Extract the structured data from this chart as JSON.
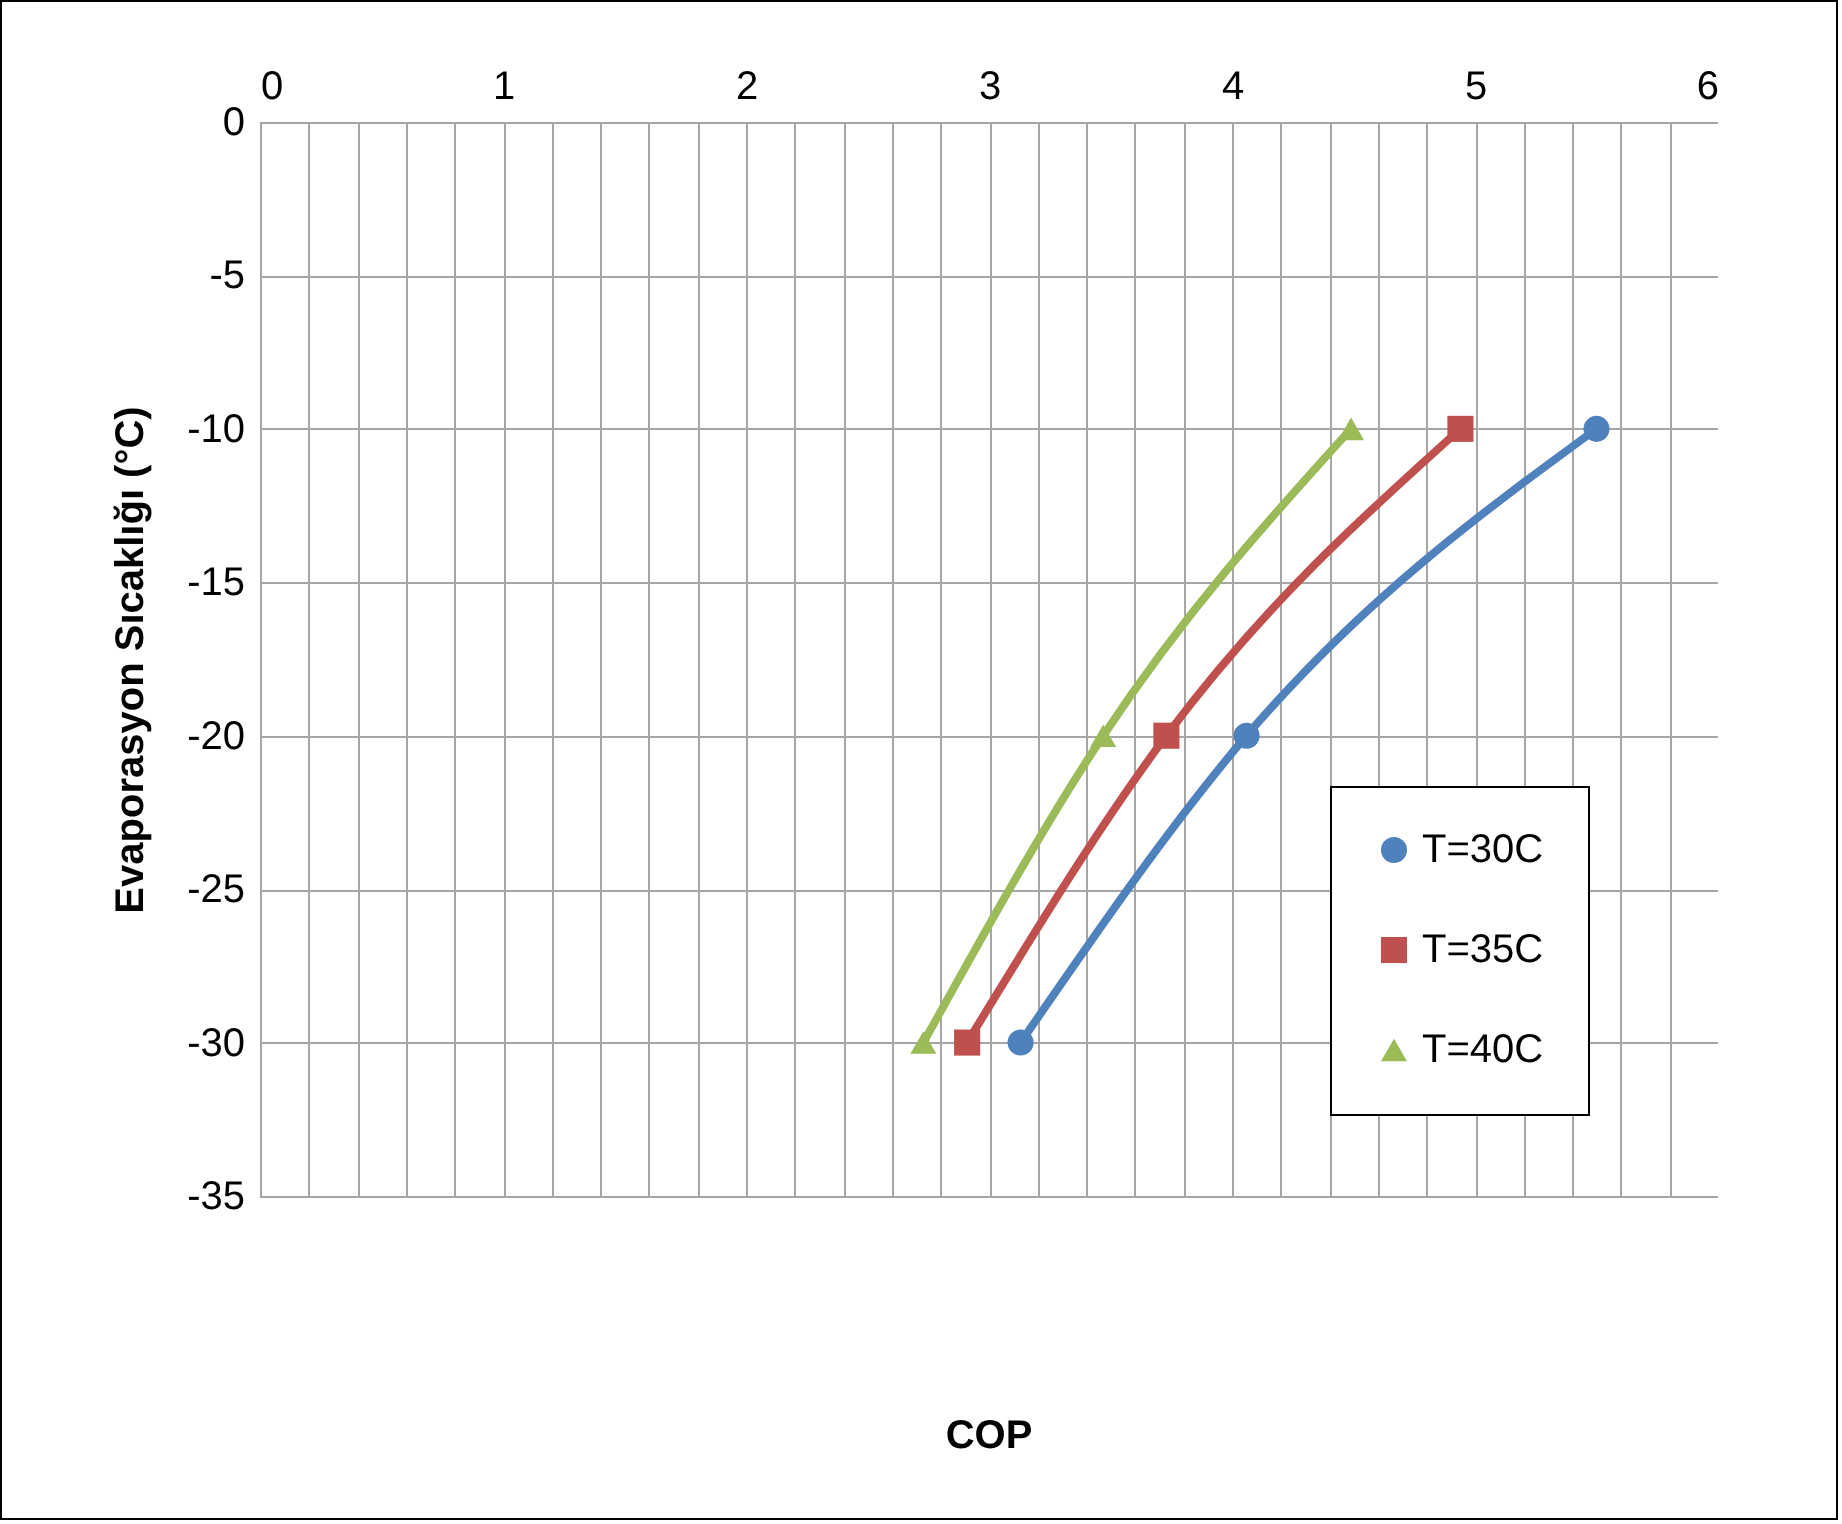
{
  "chart_data": {
    "type": "line",
    "xlabel": "COP",
    "ylabel": "Evaporasyon Sıcaklığı (°C)",
    "xlim": [
      0,
      6
    ],
    "xticks": [
      0,
      {
        "value": 0.2,
        "label": null
      },
      {
        "value": 0.4,
        "label": null
      },
      {
        "value": 0.6,
        "label": null
      },
      {
        "value": 0.8,
        "label": null
      },
      1,
      {
        "value": 1.2,
        "label": null
      },
      {
        "value": 1.4,
        "label": null
      },
      {
        "value": 1.6,
        "label": null
      },
      {
        "value": 1.8,
        "label": null
      },
      2,
      {
        "value": 2.2,
        "label": null
      },
      {
        "value": 2.4,
        "label": null
      },
      {
        "value": 2.6,
        "label": null
      },
      {
        "value": 2.8,
        "label": null
      },
      3,
      {
        "value": 3.2,
        "label": null
      },
      {
        "value": 3.4,
        "label": null
      },
      {
        "value": 3.6,
        "label": null
      },
      {
        "value": 3.8,
        "label": null
      },
      4,
      {
        "value": 4.2,
        "label": null
      },
      {
        "value": 4.4,
        "label": null
      },
      {
        "value": 4.6,
        "label": null
      },
      {
        "value": 4.8,
        "label": null
      },
      5,
      {
        "value": 5.2,
        "label": null
      },
      {
        "value": 5.4,
        "label": null
      },
      {
        "value": 5.6,
        "label": null
      },
      {
        "value": 5.8,
        "label": null
      },
      6
    ],
    "ylim": [
      -35,
      0
    ],
    "yticks": [
      0,
      -5,
      -10,
      -15,
      -20,
      -25,
      -30,
      -35
    ],
    "grid": true,
    "legend": "right",
    "line_style": "solid",
    "series": [
      {
        "name": "T=30C",
        "color": "#4f81bd",
        "marker": "circle",
        "x": [
          5.5,
          4.06,
          3.13
        ],
        "values": [
          -10,
          -20,
          -30
        ]
      },
      {
        "name": "T=35C",
        "color": "#c0504d",
        "marker": "square",
        "x": [
          4.94,
          3.73,
          2.91
        ],
        "values": [
          -10,
          -20,
          -30
        ]
      },
      {
        "name": "T=40C",
        "color": "#9bbb59",
        "marker": "triangle",
        "x": [
          4.49,
          3.47,
          2.73
        ],
        "values": [
          -10,
          -20,
          -30
        ]
      }
    ]
  }
}
